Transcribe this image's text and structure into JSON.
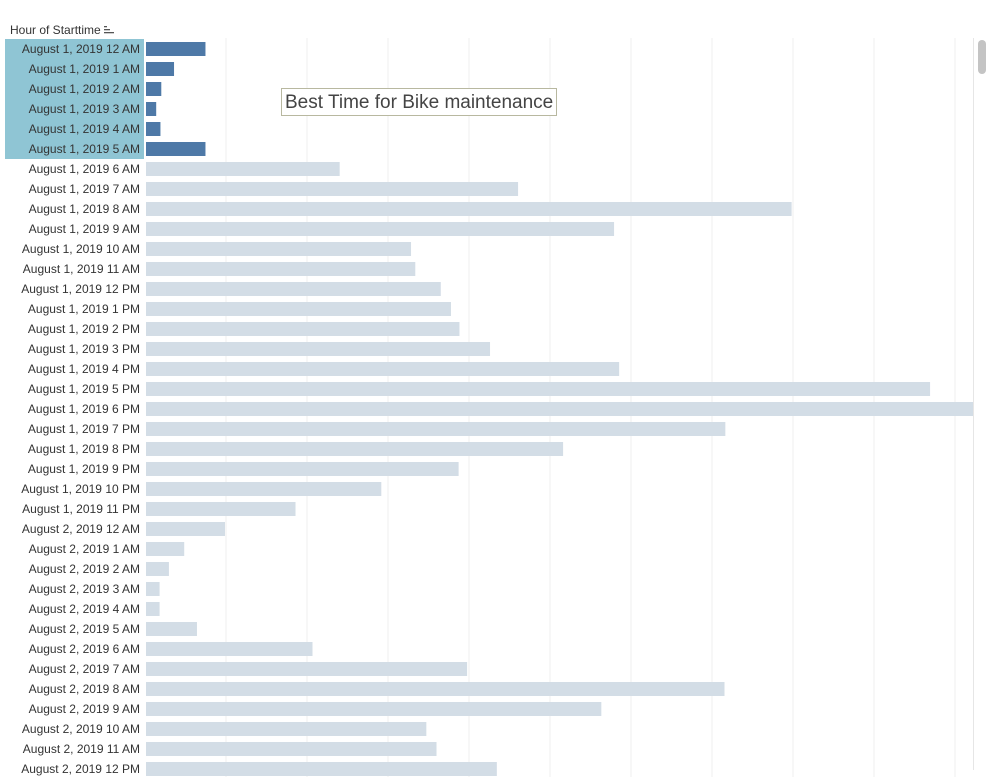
{
  "header": {
    "label": "Hour of Starttime",
    "sort_icon": "sort-descending-icon"
  },
  "annotation": {
    "text": "Best Time for Bike maintenance"
  },
  "colors": {
    "highlight_bar": "#4e79a7",
    "bar": "#d3dde6",
    "highlight_label_bg": "#8fc5d4",
    "label_text": "#333333",
    "gridline": "#efefef"
  },
  "chart_data": {
    "type": "bar",
    "orientation": "horizontal",
    "title": "",
    "xlabel": "",
    "ylabel": "Hour of Starttime",
    "grid": true,
    "x_axis_range": [
      0,
      970
    ],
    "highlighted": [
      "August 1, 2019 12 AM",
      "August 1, 2019 1 AM",
      "August 1, 2019 2 AM",
      "August 1, 2019 3 AM",
      "August 1, 2019 4 AM",
      "August 1, 2019 5 AM"
    ],
    "categories": [
      "August 1, 2019 12 AM",
      "August 1, 2019 1 AM",
      "August 1, 2019 2 AM",
      "August 1, 2019 3 AM",
      "August 1, 2019 4 AM",
      "August 1, 2019 5 AM",
      "August 1, 2019 6 AM",
      "August 1, 2019 7 AM",
      "August 1, 2019 8 AM",
      "August 1, 2019 9 AM",
      "August 1, 2019 10 AM",
      "August 1, 2019 11 AM",
      "August 1, 2019 12 PM",
      "August 1, 2019 1 PM",
      "August 1, 2019 2 PM",
      "August 1, 2019 3 PM",
      "August 1, 2019 4 PM",
      "August 1, 2019 5 PM",
      "August 1, 2019 6 PM",
      "August 1, 2019 7 PM",
      "August 1, 2019 8 PM",
      "August 1, 2019 9 PM",
      "August 1, 2019 10 PM",
      "August 1, 2019 11 PM",
      "August 2, 2019 12 AM",
      "August 2, 2019 1 AM",
      "August 2, 2019 2 AM",
      "August 2, 2019 3 AM",
      "August 2, 2019 4 AM",
      "August 2, 2019 5 AM",
      "August 2, 2019 6 AM",
      "August 2, 2019 7 AM",
      "August 2, 2019 8 AM",
      "August 2, 2019 9 AM",
      "August 2, 2019 10 AM",
      "August 2, 2019 11 AM",
      "August 2, 2019 12 PM"
    ],
    "values": [
      70,
      33,
      18,
      12,
      17,
      70,
      228,
      438,
      760,
      551,
      312,
      317,
      347,
      359,
      369,
      405,
      557,
      923,
      975,
      682,
      491,
      368,
      277,
      176,
      93,
      45,
      27,
      16,
      16,
      60,
      196,
      378,
      681,
      536,
      330,
      342,
      413
    ]
  }
}
